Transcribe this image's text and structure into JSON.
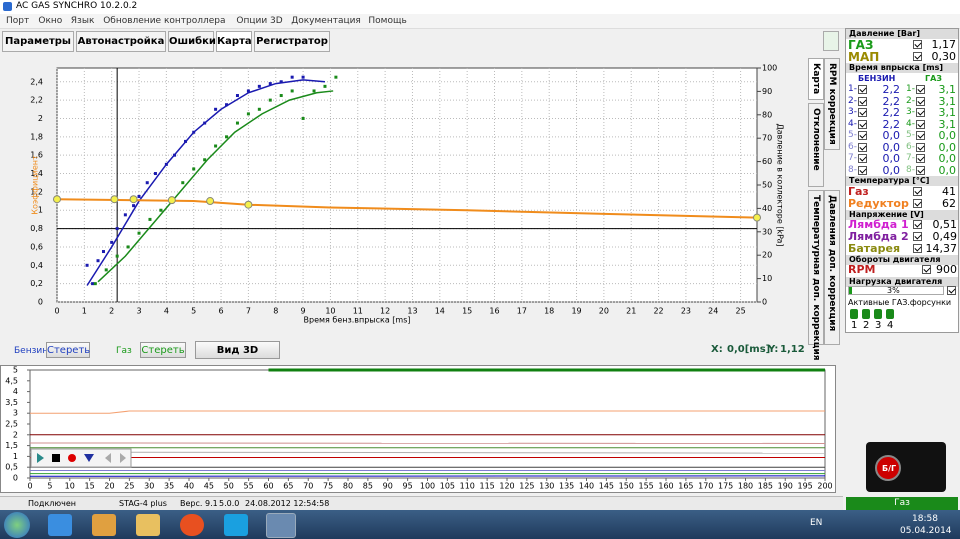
{
  "window": {
    "title": "AC GAS SYNCHRO  10.2.0.2",
    "menu": [
      "Порт",
      "Окно",
      "Язык",
      "Обновление контроллера",
      "Опции 3D",
      "Документация",
      "Помощь"
    ]
  },
  "tabs": [
    "Параметры",
    "Автонастройка",
    "Ошибки",
    "Карта",
    "Регистратор"
  ],
  "side_tabs": [
    "Карта",
    "RPM коррекция",
    "Отклонение",
    "Давления доп. коррекция",
    "Температурная доп. коррекция"
  ],
  "map_chart": {
    "type": "scatter",
    "y_label": "Коэффициент",
    "x_label": "Время бенз.впрыска [ms]",
    "y2_label": "Давление в коллекторе [kPa]",
    "xlim": [
      0,
      25.6
    ],
    "ylim": [
      0,
      2.55
    ],
    "y2lim": [
      0,
      100
    ],
    "xticks": [
      0,
      1,
      2,
      3,
      4,
      5,
      6,
      7,
      8,
      9,
      10,
      11,
      12,
      13,
      14,
      15,
      16,
      17,
      18,
      19,
      20,
      21,
      22,
      23,
      24,
      25
    ],
    "yticks": [
      0,
      {
        "value": 0.2,
        "label": "0,2"
      },
      {
        "value": 0.4,
        "label": "0,4"
      },
      {
        "value": 0.6,
        "label": "0,6"
      },
      {
        "value": 0.8,
        "label": "0,8"
      },
      1,
      {
        "value": 1.2,
        "label": "1,2"
      },
      {
        "value": 1.4,
        "label": "1,4"
      },
      {
        "value": 1.6,
        "label": "1,6"
      },
      {
        "value": 1.8,
        "label": "1,8"
      },
      2,
      {
        "value": 2.2,
        "label": "2,2"
      },
      {
        "value": 2.4,
        "label": "2,4"
      }
    ],
    "y2ticks": [
      0,
      10,
      20,
      30,
      40,
      50,
      60,
      70,
      80,
      90,
      100
    ],
    "grid": true,
    "cursor": {
      "x": 2.2,
      "y": 0.8
    },
    "series": [
      {
        "color": "#1a1ab0",
        "x": [
          1.1,
          1.3,
          1.5,
          1.7,
          2.0,
          2.2,
          2.5,
          2.8,
          3.0,
          3.3,
          3.6,
          4.0,
          4.3,
          4.7,
          5.0,
          5.4,
          5.8,
          6.2,
          6.6,
          7.0,
          7.4,
          7.8,
          8.2,
          8.6,
          9.0
        ],
        "values": [
          0.4,
          0.2,
          0.45,
          0.55,
          0.65,
          0.8,
          0.95,
          1.05,
          1.15,
          1.3,
          1.4,
          1.5,
          1.6,
          1.75,
          1.85,
          1.95,
          2.1,
          2.15,
          2.25,
          2.3,
          2.35,
          2.38,
          2.4,
          2.45,
          2.45
        ],
        "curve_x": [
          1.1,
          2,
          3,
          4,
          5,
          6,
          7,
          8,
          9,
          9.8
        ],
        "curve_values": [
          0.18,
          0.6,
          1.1,
          1.5,
          1.85,
          2.1,
          2.28,
          2.38,
          2.42,
          2.4
        ]
      },
      {
        "color": "#1a8a1a",
        "x": [
          1.4,
          1.8,
          2.2,
          2.6,
          3.0,
          3.4,
          3.8,
          4.2,
          4.6,
          5.0,
          5.4,
          5.8,
          6.2,
          6.6,
          7.0,
          7.4,
          7.8,
          8.2,
          8.6,
          9.0,
          9.4,
          9.8,
          10.2
        ],
        "values": [
          0.2,
          0.35,
          0.5,
          0.6,
          0.75,
          0.9,
          1.0,
          1.1,
          1.3,
          1.45,
          1.55,
          1.7,
          1.8,
          1.95,
          2.05,
          2.1,
          2.2,
          2.25,
          2.3,
          2.0,
          2.3,
          2.35,
          2.45
        ],
        "curve_x": [
          1.5,
          2.5,
          3.5,
          4.5,
          5.5,
          6.5,
          7.5,
          8.5,
          9.5,
          10.1
        ],
        "curve_values": [
          0.22,
          0.5,
          0.85,
          1.2,
          1.55,
          1.85,
          2.05,
          2.2,
          2.28,
          2.3
        ]
      }
    ],
    "coefficient": {
      "color": "#f08c1c",
      "x": [
        0,
        5,
        7,
        10,
        15,
        20,
        25.6
      ],
      "values": [
        1.12,
        1.1,
        1.06,
        1.03,
        1.0,
        0.96,
        0.92
      ],
      "markers_x": [
        0,
        2.1,
        2.8,
        4.2,
        5.6,
        7.0,
        25.6
      ],
      "markers_values": [
        1.12,
        1.12,
        1.12,
        1.11,
        1.1,
        1.06,
        0.92
      ],
      "marker_color": "#f4f04c"
    }
  },
  "controls": {
    "petrol_label": "Бензин",
    "petrol_clear": "Стереть",
    "gas_label": "Газ",
    "gas_clear": "Стереть",
    "view3d": "Вид 3D",
    "x_label": "X:",
    "x_value": "0,0[ms]",
    "y_label": "Y:",
    "y_value": "1,12"
  },
  "recorder_chart": {
    "type": "line",
    "xlim": [
      0,
      200
    ],
    "ylim": [
      0,
      5
    ],
    "xticks": [
      0,
      5,
      10,
      15,
      20,
      25,
      30,
      35,
      40,
      45,
      50,
      55,
      60,
      65,
      70,
      75,
      80,
      85,
      90,
      95,
      100,
      105,
      110,
      115,
      120,
      125,
      130,
      135,
      140,
      145,
      150,
      155,
      160,
      165,
      170,
      175,
      180,
      185,
      190,
      195,
      200
    ],
    "yticks": [
      0,
      {
        "value": 0.5,
        "label": "0,5"
      },
      1,
      {
        "value": 1.5,
        "label": "1,5"
      },
      2,
      {
        "value": 2.5,
        "label": "2,5"
      },
      3,
      {
        "value": 3.5,
        "label": "3,5"
      },
      4,
      {
        "value": 4.5,
        "label": "4,5"
      },
      5
    ],
    "series": [
      {
        "color": "#f4a070",
        "x": [
          0,
          20,
          25,
          100,
          200
        ],
        "values": [
          3.0,
          3.0,
          3.1,
          3.1,
          3.1
        ]
      },
      {
        "color": "#800000",
        "x": [
          0,
          200
        ],
        "values": [
          2.0,
          2.0
        ]
      },
      {
        "color": "#d09090",
        "x": [
          0,
          200
        ],
        "values": [
          1.62,
          1.6
        ]
      },
      {
        "color": "#4a8a30",
        "x": [
          0,
          200
        ],
        "values": [
          1.4,
          1.4
        ]
      },
      {
        "color": "#b0b0b0",
        "x": [
          0,
          200
        ],
        "values": [
          1.2,
          1.15
        ]
      },
      {
        "color": "#c00000",
        "x": [
          0,
          200
        ],
        "values": [
          0.95,
          0.95
        ]
      },
      {
        "color": "#404040",
        "x": [
          0,
          200
        ],
        "values": [
          0.5,
          0.5
        ]
      },
      {
        "color": "#8080d0",
        "x": [
          0,
          200
        ],
        "values": [
          0.35,
          0.35
        ]
      },
      {
        "color": "#30a030",
        "x": [
          0,
          200
        ],
        "values": [
          0.2,
          0.2
        ]
      },
      {
        "color": "#0000c0",
        "x": [
          0,
          200
        ],
        "values": [
          0.08,
          0.1
        ]
      },
      {
        "color": "#108010",
        "x": [
          60,
          200
        ],
        "values": [
          5,
          5
        ],
        "width": 3
      }
    ]
  },
  "panel": {
    "pressure": {
      "title": "Давление [Bar]",
      "rows": [
        {
          "label": "ГАЗ",
          "value": "1,17",
          "color": "#1a9a1a"
        },
        {
          "label": "МАП",
          "value": "0,30",
          "color": "#9a8a00"
        }
      ]
    },
    "injection": {
      "title": "Время впрыска [ms]",
      "petrol_header": "БЕНЗИН",
      "gas_header": "ГАЗ",
      "rows": [
        {
          "label": "1-",
          "petrol": "2,2",
          "gas_label": "1-",
          "gas": "3,1"
        },
        {
          "label": "2-",
          "petrol": "2,2",
          "gas_label": "2-",
          "gas": "3,1"
        },
        {
          "label": "3-",
          "petrol": "2,2",
          "gas_label": "3-",
          "gas": "3,1"
        },
        {
          "label": "4-",
          "petrol": "2,2",
          "gas_label": "4-",
          "gas": "3,1"
        },
        {
          "label": "5-",
          "petrol": "0,0",
          "gas_label": "5-",
          "gas": "0,0"
        },
        {
          "label": "6-",
          "petrol": "0,0",
          "gas_label": "6-",
          "gas": "0,0"
        },
        {
          "label": "7-",
          "petrol": "0,0",
          "gas_label": "7-",
          "gas": "0,0"
        },
        {
          "label": "8-",
          "petrol": "0,0",
          "gas_label": "8-",
          "gas": "0,0"
        }
      ]
    },
    "temperature": {
      "title": "Температура [°C]",
      "rows": [
        {
          "label": "Газ",
          "value": "41",
          "color": "#c02020"
        },
        {
          "label": "Редуктор",
          "value": "62",
          "color": "#f08020"
        }
      ]
    },
    "voltage": {
      "title": "Напряжение [V]",
      "rows": [
        {
          "label": "Лямбда 1",
          "value": "0,51",
          "color": "#d020d0"
        },
        {
          "label": "Лямбда 2",
          "value": "0,49",
          "color": "#8020a0"
        },
        {
          "label": "Батарея",
          "value": "14,37",
          "color": "#8a8a10"
        }
      ]
    },
    "rpm": {
      "title": "Обороты двигателя",
      "label": "RPM",
      "value": "900"
    },
    "load": {
      "title": "Нагрузка двигателя",
      "value": "3%"
    },
    "injectors": {
      "title": "Активные ГАЗ.форсунки",
      "labels": [
        "1",
        "2",
        "3",
        "4"
      ]
    },
    "switch_label": "Б/Г"
  },
  "status": [
    "Подключен",
    "STAG-4 plus",
    "Верс. 9.1",
    "5.0.0",
    "24.08.2012 12:54:58"
  ],
  "gas_button": "Газ",
  "taskbar": {
    "lang": "EN",
    "time": "18:58",
    "date": "05.04.2014"
  }
}
